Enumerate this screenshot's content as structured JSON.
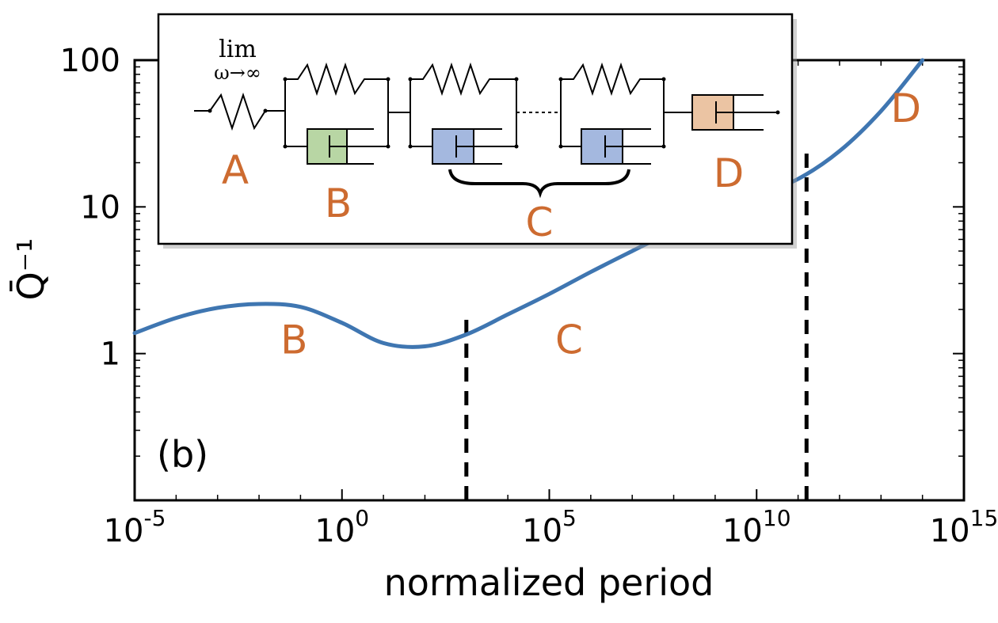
{
  "chart_data": {
    "type": "line",
    "panel_label": "(b)",
    "xlabel": "normalized period",
    "ylabel": "Q̄⁻¹",
    "x_scale": "log",
    "y_scale": "log",
    "xlim": [
      1e-05,
      1000000000000000.0
    ],
    "ylim": [
      0.1,
      100
    ],
    "x_ticks": [
      {
        "value": 1e-05,
        "base": "10",
        "exp": "-5"
      },
      {
        "value": 1,
        "base": "10",
        "exp": "0"
      },
      {
        "value": 100000.0,
        "base": "10",
        "exp": "5"
      },
      {
        "value": 10000000000.0,
        "base": "10",
        "exp": "10"
      },
      {
        "value": 1000000000000000.0,
        "base": "10",
        "exp": "15"
      }
    ],
    "y_ticks": [
      {
        "value": 1,
        "label": "1"
      },
      {
        "value": 10,
        "label": "10"
      },
      {
        "value": 100,
        "label": "100"
      }
    ],
    "series": [
      {
        "color": "#3f76b1",
        "x": [
          1e-05,
          0.0001,
          0.001,
          0.01,
          0.1,
          1,
          10,
          100,
          1000,
          10000,
          100000.0,
          1000000.0,
          10000000.0,
          100000000.0,
          1000000000.0,
          10000000000.0,
          100000000000.0,
          1000000000000.0,
          10000000000000.0,
          100000000000000.0
        ],
        "y": [
          1.38,
          1.75,
          2.05,
          2.18,
          2.08,
          1.62,
          1.18,
          1.12,
          1.35,
          1.85,
          2.55,
          3.6,
          5.0,
          6.9,
          9.3,
          12.0,
          15.5,
          24.0,
          45.0,
          100.0
        ]
      }
    ],
    "vlines": [
      {
        "x": 1000,
        "style": "dashed",
        "y_range": [
          0.1,
          1.9
        ]
      },
      {
        "x": 160000000000.0,
        "style": "dashed",
        "y_range": [
          0.1,
          24
        ]
      }
    ],
    "region_labels": [
      {
        "text": "B",
        "x": 0.07,
        "y": 1.0
      },
      {
        "text": "C",
        "x": 300000.0,
        "y": 1.0
      },
      {
        "text": "D",
        "x": 40000000000000.0,
        "y": 38
      }
    ],
    "inset": {
      "limit_top": "lim",
      "limit_bottom": "ω→∞",
      "labels": [
        "A",
        "B",
        "C",
        "D"
      ],
      "dashpot_colors": {
        "B": "#b8d6a4",
        "C": "#a4b8df",
        "D": "#ebc4a3"
      }
    }
  }
}
